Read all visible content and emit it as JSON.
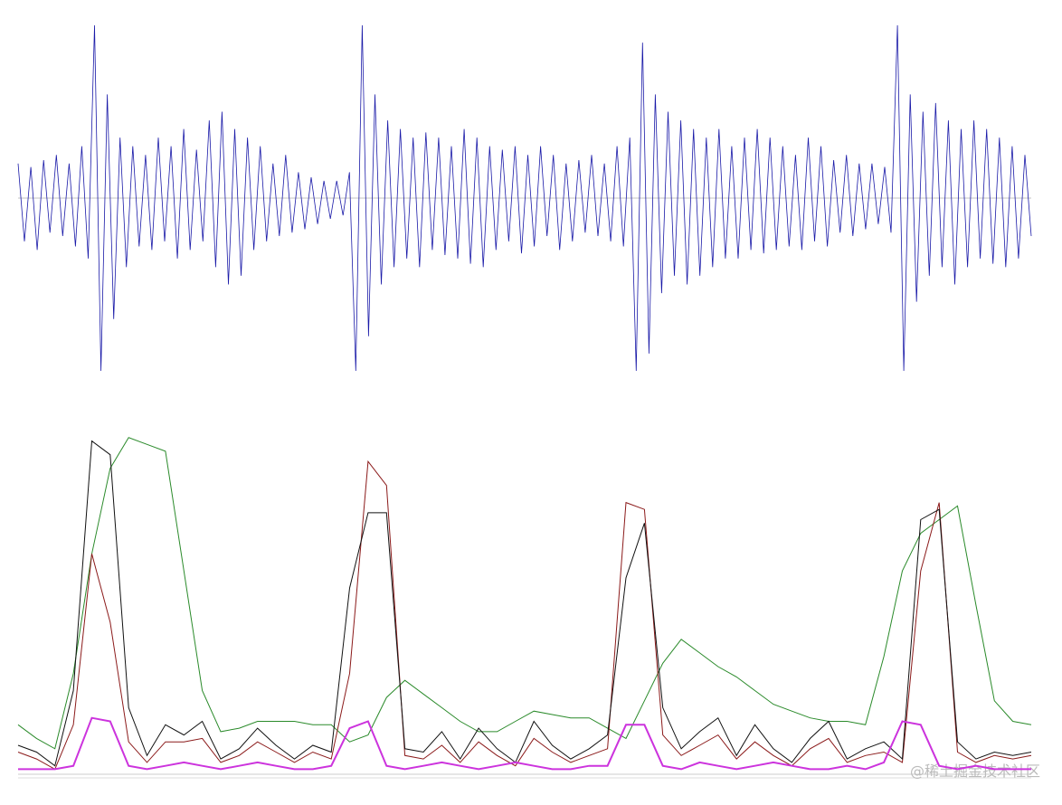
{
  "chart_data": [
    {
      "type": "line",
      "color": "#1a1aa8",
      "ylim": [
        -1,
        1
      ],
      "values": [
        0.2,
        -0.25,
        0.18,
        -0.3,
        0.22,
        -0.2,
        0.25,
        -0.22,
        0.2,
        -0.28,
        0.3,
        -0.35,
        1.0,
        -1.0,
        0.6,
        -0.7,
        0.35,
        -0.4,
        0.3,
        -0.28,
        0.25,
        -0.3,
        0.35,
        -0.25,
        0.3,
        -0.35,
        0.4,
        -0.3,
        0.28,
        -0.25,
        0.45,
        -0.4,
        0.5,
        -0.5,
        0.4,
        -0.45,
        0.35,
        -0.3,
        0.3,
        -0.25,
        0.2,
        -0.22,
        0.25,
        -0.2,
        0.15,
        -0.18,
        0.12,
        -0.15,
        0.1,
        -0.12,
        0.1,
        -0.1,
        0.15,
        -1.0,
        1.0,
        -0.8,
        0.6,
        -0.5,
        0.45,
        -0.4,
        0.4,
        -0.35,
        0.35,
        -0.4,
        0.38,
        -0.3,
        0.35,
        -0.33,
        0.3,
        -0.35,
        0.4,
        -0.38,
        0.35,
        -0.4,
        0.3,
        -0.3,
        0.28,
        -0.25,
        0.3,
        -0.32,
        0.25,
        -0.28,
        0.3,
        -0.22,
        0.25,
        -0.3,
        0.2,
        -0.25,
        0.22,
        -0.2,
        0.25,
        -0.22,
        0.2,
        -0.25,
        0.3,
        -0.28,
        0.35,
        -1.0,
        0.9,
        -0.9,
        0.6,
        -0.55,
        0.5,
        -0.45,
        0.45,
        -0.5,
        0.4,
        -0.45,
        0.35,
        -0.4,
        0.4,
        -0.35,
        0.3,
        -0.35,
        0.35,
        -0.3,
        0.4,
        -0.32,
        0.35,
        -0.3,
        0.3,
        -0.28,
        0.25,
        -0.3,
        0.35,
        -0.25,
        0.3,
        -0.28,
        0.22,
        -0.2,
        0.25,
        -0.22,
        0.2,
        -0.18,
        0.2,
        -0.15,
        0.18,
        -0.2,
        1.0,
        -1.0,
        0.6,
        -0.6,
        0.5,
        -0.45,
        0.55,
        -0.4,
        0.45,
        -0.5,
        0.4,
        -0.4,
        0.45,
        -0.35,
        0.4,
        -0.38,
        0.35,
        -0.4,
        0.3,
        -0.35,
        0.25,
        -0.22
      ]
    },
    {
      "type": "line",
      "ylim": [
        0,
        1
      ],
      "series": [
        {
          "color": "#2a8a2a",
          "values": [
            0.15,
            0.11,
            0.08,
            0.3,
            0.65,
            0.9,
            0.99,
            0.97,
            0.95,
            0.6,
            0.25,
            0.13,
            0.14,
            0.16,
            0.16,
            0.16,
            0.15,
            0.15,
            0.1,
            0.12,
            0.23,
            0.28,
            0.24,
            0.2,
            0.16,
            0.13,
            0.13,
            0.16,
            0.19,
            0.18,
            0.17,
            0.17,
            0.14,
            0.11,
            0.22,
            0.33,
            0.4,
            0.36,
            0.32,
            0.29,
            0.25,
            0.21,
            0.19,
            0.17,
            0.16,
            0.16,
            0.15,
            0.35,
            0.6,
            0.71,
            0.75,
            0.79,
            0.5,
            0.22,
            0.16,
            0.15
          ]
        },
        {
          "color": "#8b1a1a",
          "values": [
            0.07,
            0.05,
            0.02,
            0.15,
            0.65,
            0.45,
            0.1,
            0.04,
            0.1,
            0.1,
            0.11,
            0.04,
            0.06,
            0.1,
            0.07,
            0.04,
            0.07,
            0.05,
            0.3,
            0.92,
            0.85,
            0.06,
            0.05,
            0.09,
            0.04,
            0.1,
            0.06,
            0.03,
            0.11,
            0.07,
            0.04,
            0.06,
            0.08,
            0.8,
            0.78,
            0.12,
            0.06,
            0.09,
            0.12,
            0.05,
            0.1,
            0.06,
            0.03,
            0.08,
            0.11,
            0.04,
            0.06,
            0.07,
            0.04,
            0.6,
            0.8,
            0.07,
            0.04,
            0.06,
            0.05,
            0.06
          ]
        },
        {
          "color": "#111111",
          "values": [
            0.09,
            0.07,
            0.03,
            0.25,
            0.98,
            0.94,
            0.2,
            0.06,
            0.15,
            0.12,
            0.16,
            0.05,
            0.08,
            0.14,
            0.09,
            0.05,
            0.09,
            0.07,
            0.55,
            0.77,
            0.77,
            0.08,
            0.07,
            0.13,
            0.05,
            0.14,
            0.08,
            0.04,
            0.16,
            0.09,
            0.05,
            0.08,
            0.12,
            0.58,
            0.74,
            0.2,
            0.08,
            0.13,
            0.17,
            0.06,
            0.15,
            0.08,
            0.04,
            0.11,
            0.16,
            0.05,
            0.08,
            0.1,
            0.05,
            0.75,
            0.78,
            0.1,
            0.05,
            0.07,
            0.06,
            0.07
          ]
        },
        {
          "color": "#cc33dd",
          "values": [
            0.02,
            0.02,
            0.02,
            0.03,
            0.17,
            0.16,
            0.03,
            0.02,
            0.03,
            0.04,
            0.03,
            0.02,
            0.03,
            0.04,
            0.03,
            0.02,
            0.02,
            0.03,
            0.14,
            0.16,
            0.03,
            0.02,
            0.03,
            0.04,
            0.03,
            0.02,
            0.03,
            0.04,
            0.03,
            0.02,
            0.02,
            0.03,
            0.03,
            0.15,
            0.15,
            0.03,
            0.02,
            0.04,
            0.03,
            0.02,
            0.03,
            0.04,
            0.03,
            0.02,
            0.02,
            0.03,
            0.02,
            0.04,
            0.16,
            0.15,
            0.03,
            0.02,
            0.03,
            0.02,
            0.02,
            0.02
          ]
        }
      ]
    }
  ],
  "watermark": "@稀土掘金技术社区"
}
